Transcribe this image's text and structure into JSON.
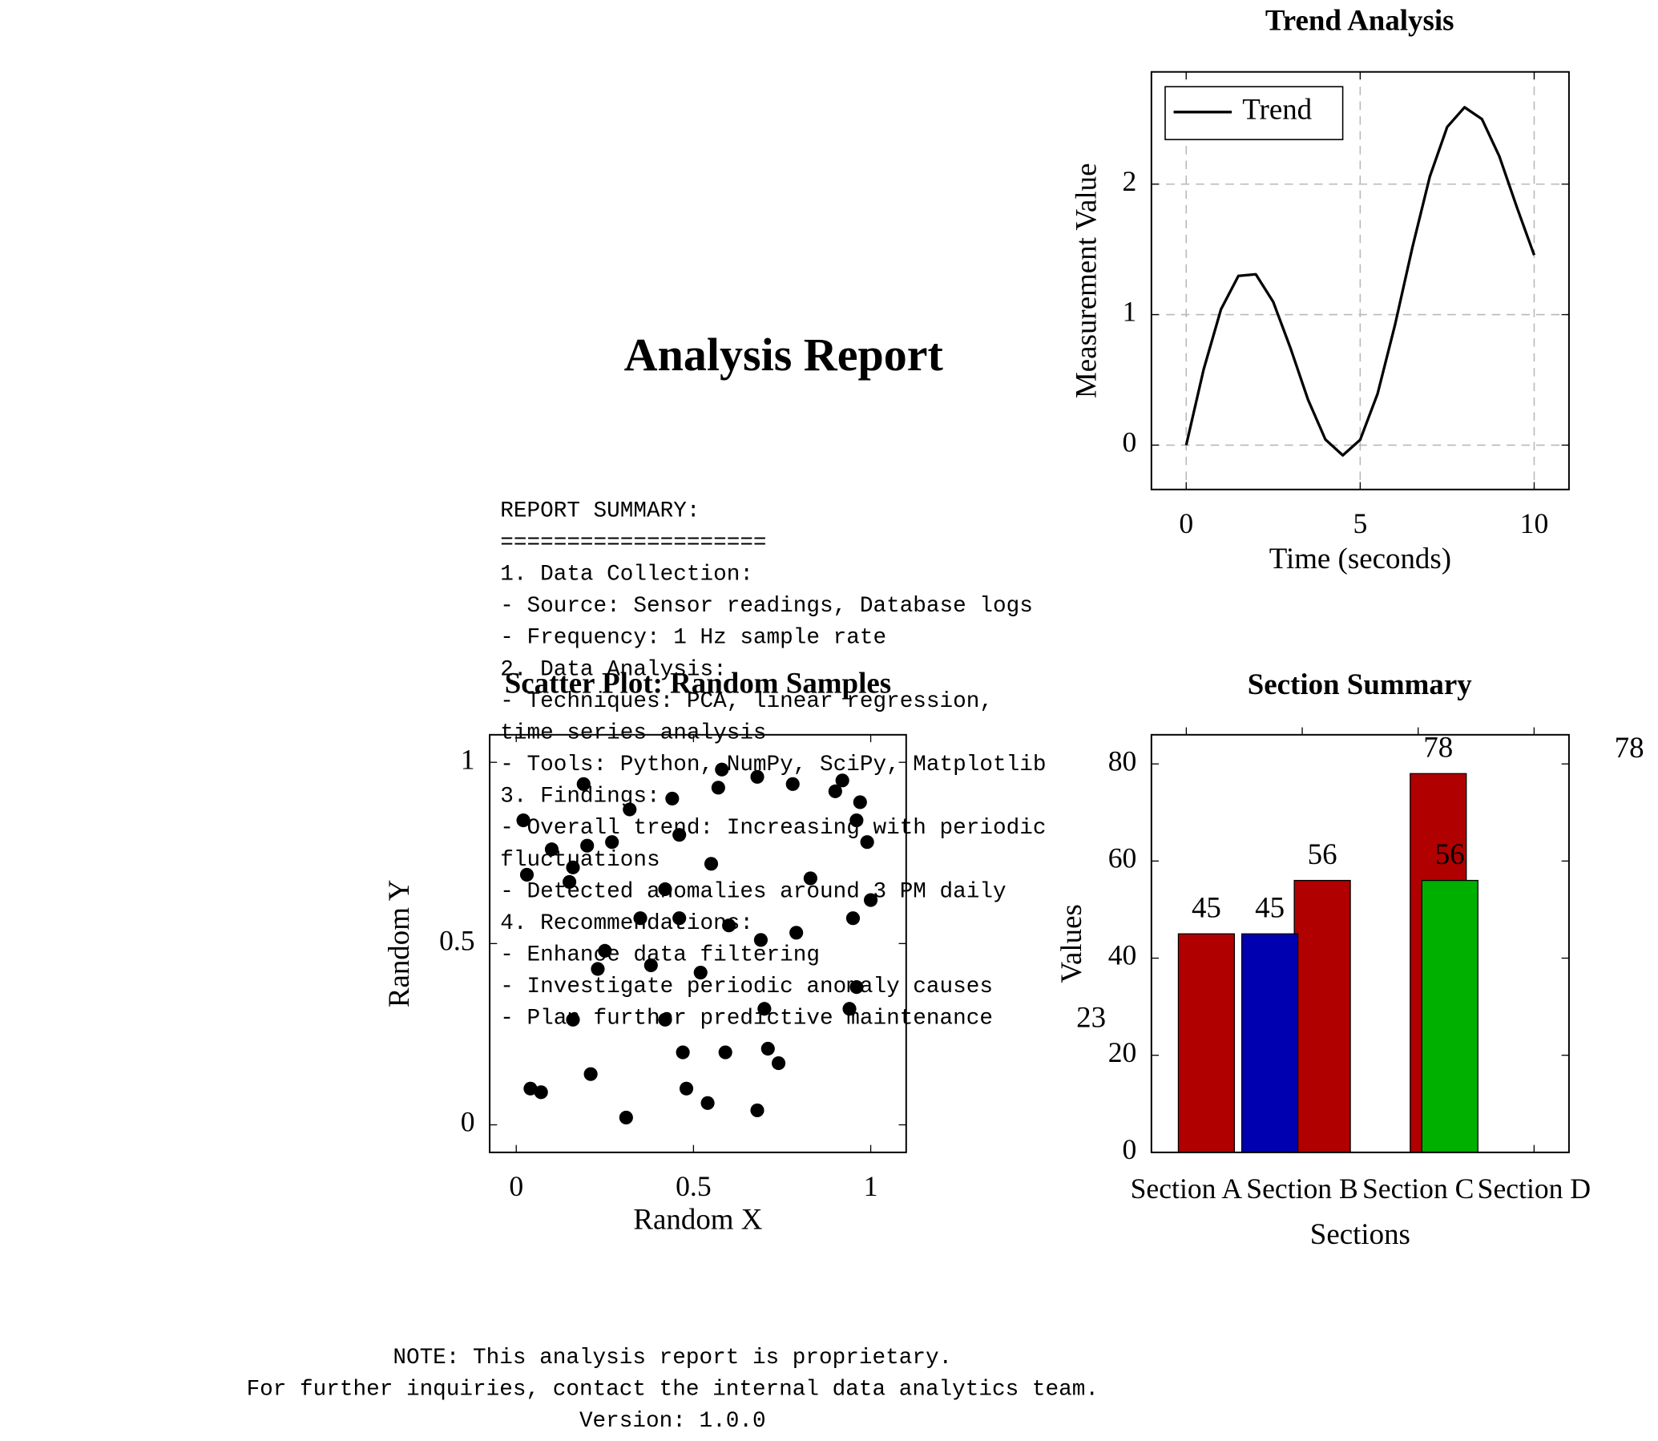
{
  "title": "Analysis Report",
  "summary": [
    "REPORT SUMMARY:",
    "====================",
    "1. Data Collection:",
    "- Source: Sensor readings, Database logs",
    "- Frequency: 1 Hz sample rate",
    "2. Data Analysis:",
    "- Techniques: PCA, linear regression,",
    "time series analysis",
    "- Tools: Python, NumPy, SciPy, Matplotlib",
    "3. Findings:",
    "- Overall trend: Increasing with periodic",
    "fluctuations",
    "- Detected anomalies around 3 PM daily",
    "4. Recommendations:",
    "- Enhance data filtering",
    "- Investigate periodic anomaly causes",
    "- Plan further predictive maintenance"
  ],
  "note": [
    "NOTE: This analysis report is proprietary.",
    "For further inquiries, contact the internal data analytics team.",
    "Version: 1.0.0"
  ],
  "chart_data": [
    {
      "type": "line",
      "title": "Trend Analysis",
      "xlabel": "Time (seconds)",
      "ylabel": "Measurement Value",
      "x": [
        0,
        0.5,
        1,
        1.5,
        2,
        2.5,
        3,
        3.5,
        4,
        4.5,
        5,
        5.5,
        6,
        6.5,
        7,
        7.5,
        8,
        8.5,
        9,
        9.5,
        10
      ],
      "series": [
        {
          "name": "Trend",
          "color": "#000000",
          "values": [
            0,
            0.579,
            1.041,
            1.297,
            1.309,
            1.098,
            0.741,
            0.349,
            0.043,
            -0.078,
            0.041,
            0.394,
            0.921,
            1.515,
            2.057,
            2.438,
            2.589,
            2.498,
            2.212,
            1.825,
            1.456
          ]
        }
      ],
      "xlim": [
        -1,
        11
      ],
      "ylim": [
        -0.34,
        2.86
      ],
      "xticks": [
        0,
        5,
        10
      ],
      "yticks": [
        0,
        1,
        2
      ],
      "grid": true,
      "legend": "upper left"
    },
    {
      "type": "scatter",
      "title": "Scatter Plot: Random Samples",
      "xlabel": "Random X",
      "ylabel": "Random Y",
      "color": "#000000",
      "x": [
        0.02,
        0.03,
        0.04,
        0.07,
        0.1,
        0.15,
        0.16,
        0.16,
        0.19,
        0.2,
        0.21,
        0.23,
        0.25,
        0.27,
        0.31,
        0.32,
        0.35,
        0.38,
        0.42,
        0.42,
        0.44,
        0.46,
        0.46,
        0.47,
        0.48,
        0.52,
        0.54,
        0.55,
        0.57,
        0.58,
        0.59,
        0.6,
        0.68,
        0.68,
        0.69,
        0.7,
        0.71,
        0.74,
        0.78,
        0.79,
        0.83,
        0.9,
        0.92,
        0.95,
        0.94,
        0.96,
        0.96,
        0.97,
        0.99,
        1.0
      ],
      "y": [
        0.84,
        0.69,
        0.1,
        0.09,
        0.76,
        0.67,
        0.71,
        0.29,
        0.94,
        0.77,
        0.14,
        0.43,
        0.48,
        0.78,
        0.02,
        0.87,
        0.57,
        0.44,
        0.29,
        0.65,
        0.9,
        0.57,
        0.8,
        0.2,
        0.1,
        0.42,
        0.06,
        0.72,
        0.93,
        0.98,
        0.2,
        0.55,
        0.96,
        0.04,
        0.51,
        0.32,
        0.21,
        0.17,
        0.94,
        0.53,
        0.68,
        0.92,
        0.95,
        0.57,
        0.32,
        0.84,
        0.38,
        0.89,
        0.78,
        0.62
      ],
      "xlim": [
        -0.075,
        1.1
      ],
      "ylim": [
        -0.076,
        1.076
      ],
      "xticks": [
        0,
        0.5,
        1
      ],
      "yticks": [
        0,
        0.5,
        1
      ]
    },
    {
      "type": "bar",
      "title": "Section Summary",
      "xlabel": "Sections",
      "ylabel": "Values",
      "categories": [
        "Section A",
        "Section B",
        "Section C",
        "Section D"
      ],
      "series": [
        {
          "color": "#b00000",
          "values": [
            45,
            56,
            78,
            null
          ]
        },
        {
          "color": "#0000b0",
          "values": [
            45,
            null,
            null,
            null
          ]
        },
        {
          "color": "#00b000",
          "values": [
            null,
            null,
            56,
            null
          ]
        }
      ],
      "ylim": [
        0,
        86
      ],
      "yticks": [
        0,
        20,
        40,
        60,
        80
      ],
      "annotations": [
        "78",
        "23"
      ]
    }
  ]
}
